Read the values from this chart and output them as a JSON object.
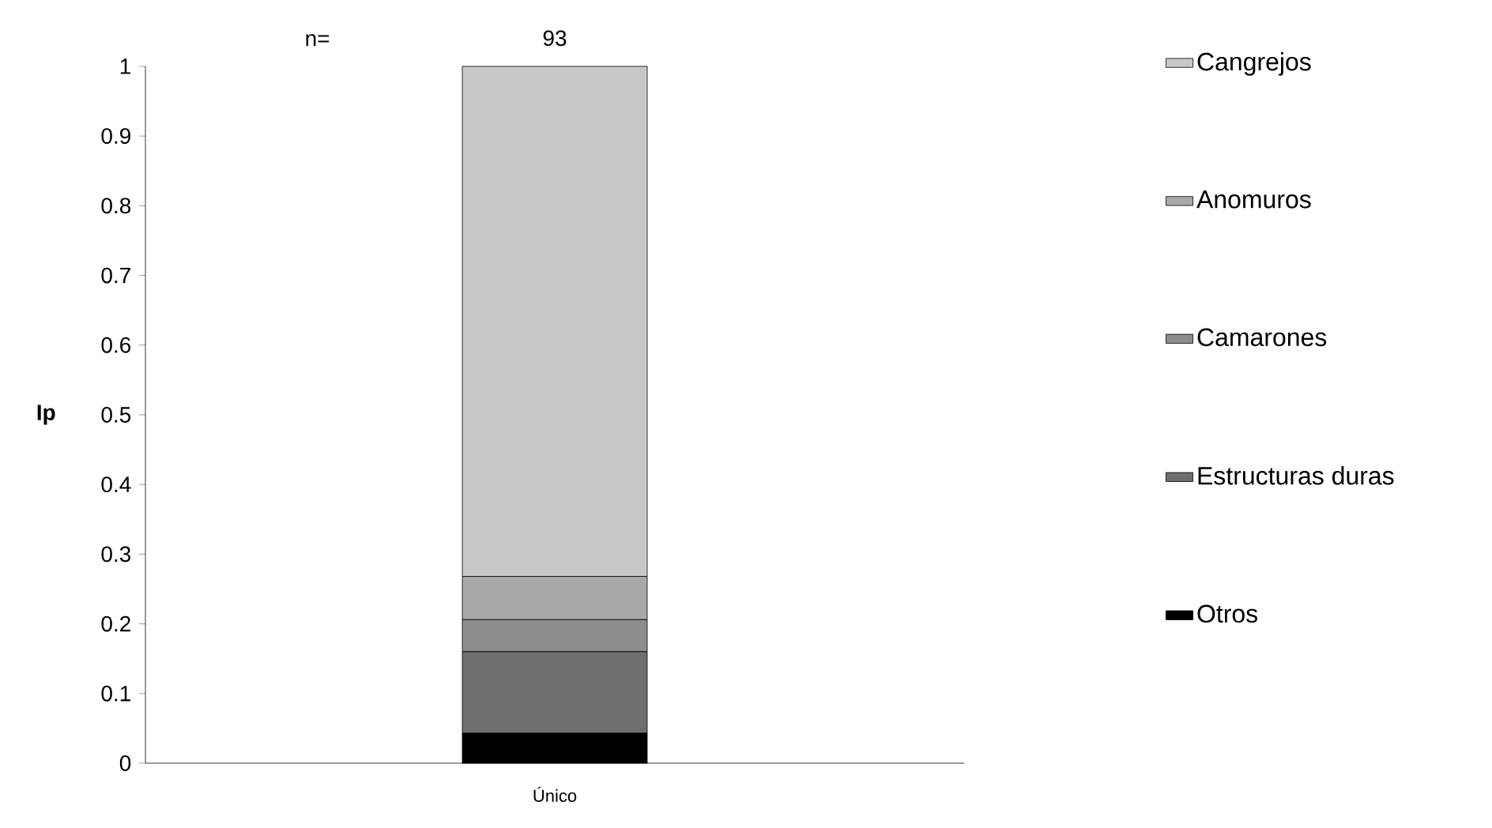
{
  "chart_data": {
    "type": "bar",
    "stacked": true,
    "categories": [
      "Único"
    ],
    "ylabel": "Ip",
    "ylim": [
      0,
      1
    ],
    "yticks": [
      0,
      0.1,
      0.2,
      0.3,
      0.4,
      0.5,
      0.6,
      0.7,
      0.8,
      0.9,
      1
    ],
    "legend": "right",
    "annotations": [
      "n=",
      "93"
    ],
    "series": [
      {
        "name": "Otros",
        "color": "#000000",
        "values": [
          0.043
        ]
      },
      {
        "name": "Estructuras duras",
        "color": "#6e6e6e",
        "values": [
          0.117
        ]
      },
      {
        "name": "Camarones",
        "color": "#8c8c8c",
        "values": [
          0.046
        ]
      },
      {
        "name": "Anomuros",
        "color": "#a8a8a8",
        "values": [
          0.062
        ]
      },
      {
        "name": "Cangrejos",
        "color": "#c8c8c8",
        "values": [
          0.732
        ]
      }
    ]
  }
}
